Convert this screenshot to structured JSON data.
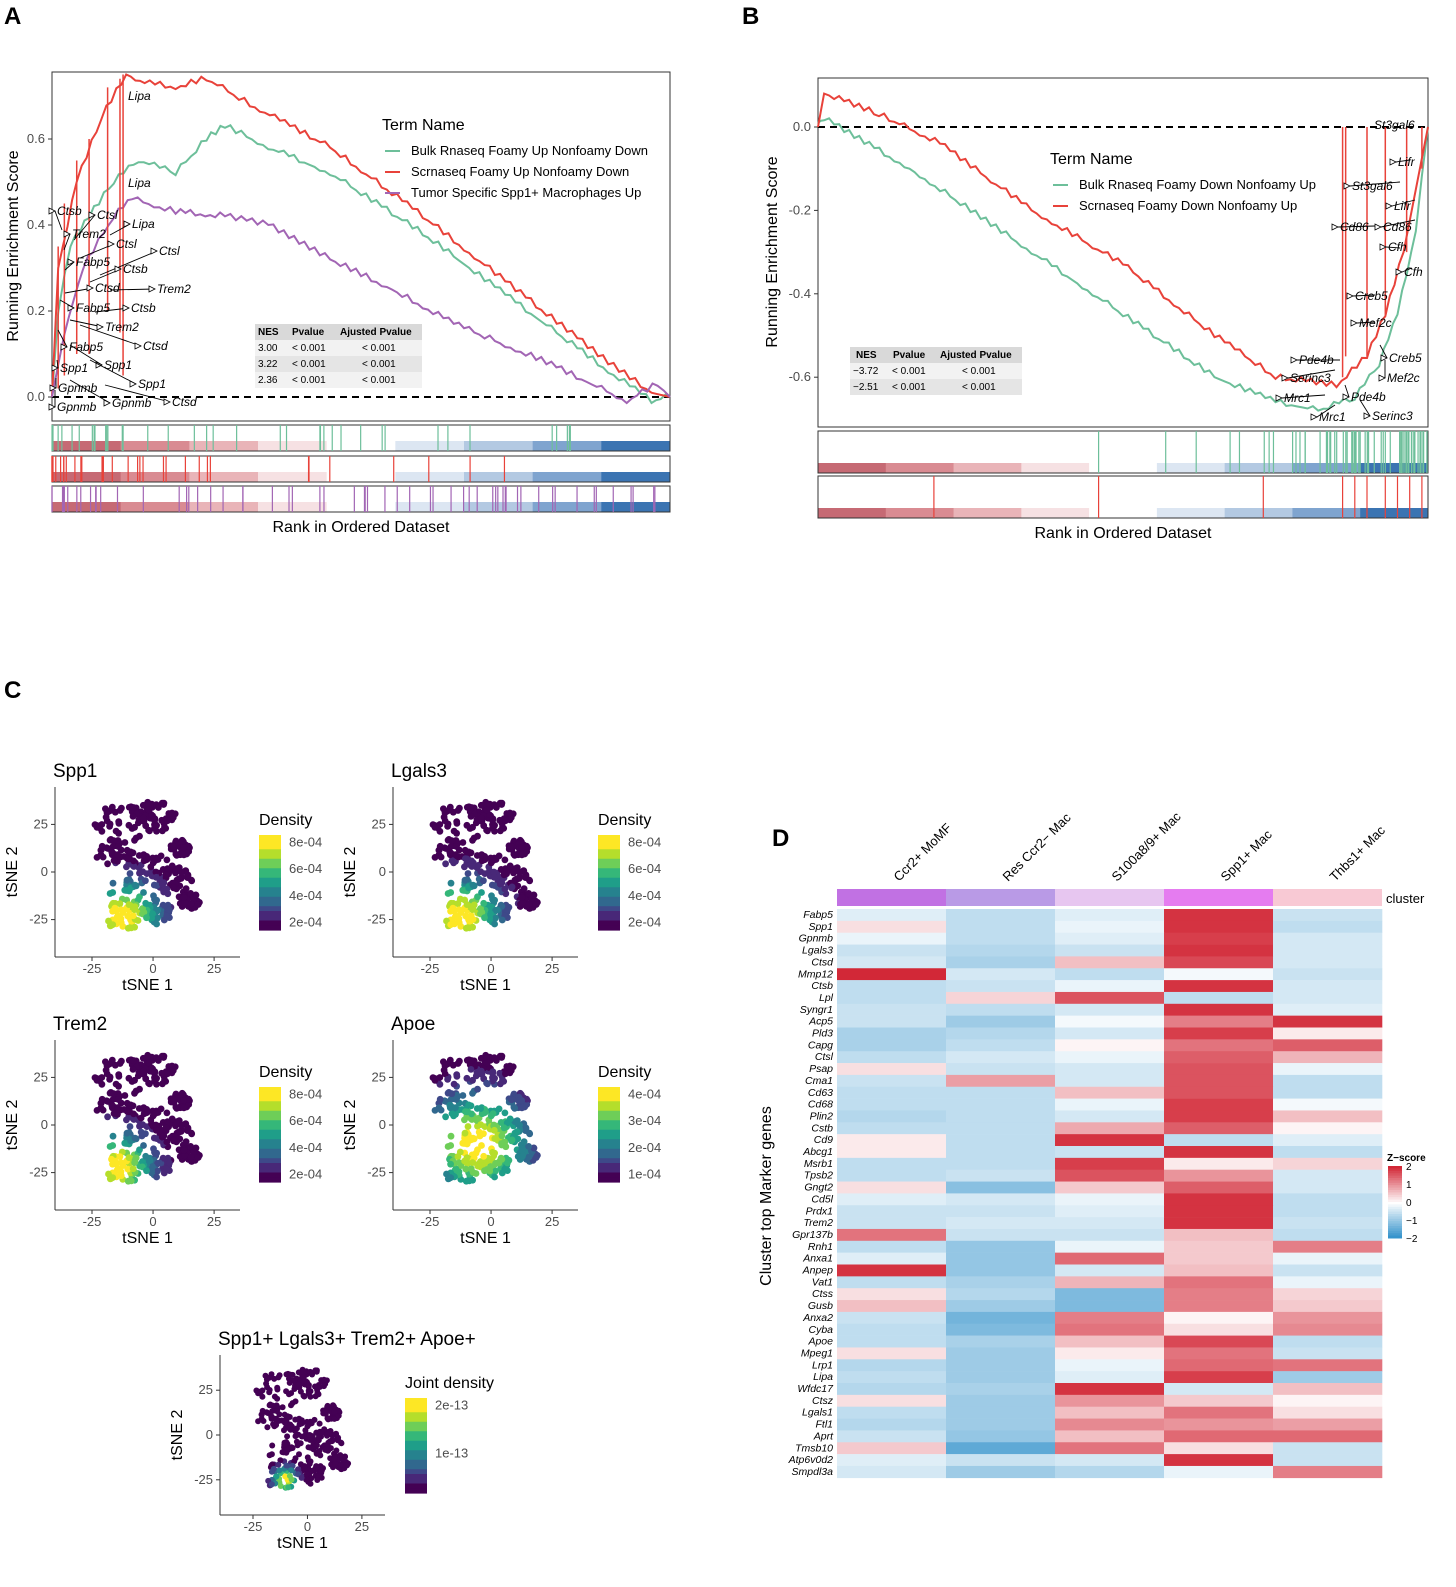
{
  "panels": {
    "A": "A",
    "B": "B",
    "C": "C",
    "D": "D"
  },
  "chart_data": [
    {
      "id": "A",
      "type": "line",
      "ylabel": "Running Enrichment Score",
      "xlabel": "Rank in Ordered Dataset",
      "yticks": [
        "0.0",
        "0.2",
        "0.4",
        "0.6"
      ],
      "ylim": [
        -0.05,
        0.78
      ],
      "legend_title": "Term Name",
      "colors": [
        "#6dbf9a",
        "#e8423a",
        "#a265b4"
      ],
      "series": [
        {
          "name": "Bulk Rnaseq Foamy Up Nonfoamy Down",
          "color": "#6dbf9a",
          "points": [
            [
              0,
              0
            ],
            [
              0.01,
              0.2
            ],
            [
              0.03,
              0.35
            ],
            [
              0.06,
              0.42
            ],
            [
              0.1,
              0.5
            ],
            [
              0.14,
              0.55
            ],
            [
              0.2,
              0.52
            ],
            [
              0.25,
              0.6
            ],
            [
              0.28,
              0.63
            ],
            [
              0.35,
              0.58
            ],
            [
              0.45,
              0.52
            ],
            [
              0.6,
              0.38
            ],
            [
              0.75,
              0.22
            ],
            [
              0.9,
              0.06
            ],
            [
              0.97,
              -0.01
            ],
            [
              1,
              0
            ]
          ]
        },
        {
          "name": "Scrnaseq Foamy Up Nonfoamy Down",
          "color": "#e8423a",
          "points": [
            [
              0,
              0
            ],
            [
              0.01,
              0.3
            ],
            [
              0.04,
              0.5
            ],
            [
              0.08,
              0.65
            ],
            [
              0.12,
              0.75
            ],
            [
              0.15,
              0.73
            ],
            [
              0.2,
              0.72
            ],
            [
              0.25,
              0.74
            ],
            [
              0.32,
              0.68
            ],
            [
              0.45,
              0.58
            ],
            [
              0.6,
              0.42
            ],
            [
              0.75,
              0.25
            ],
            [
              0.9,
              0.08
            ],
            [
              0.97,
              0.01
            ],
            [
              1,
              0
            ]
          ]
        },
        {
          "name": "Tumor Specific Spp1+ Macrophages Up",
          "color": "#a265b4",
          "points": [
            [
              0,
              0
            ],
            [
              0.02,
              0.15
            ],
            [
              0.05,
              0.3
            ],
            [
              0.1,
              0.42
            ],
            [
              0.13,
              0.46
            ],
            [
              0.2,
              0.43
            ],
            [
              0.28,
              0.42
            ],
            [
              0.35,
              0.4
            ],
            [
              0.45,
              0.32
            ],
            [
              0.55,
              0.25
            ],
            [
              0.65,
              0.17
            ],
            [
              0.8,
              0.08
            ],
            [
              0.93,
              -0.01
            ],
            [
              0.98,
              0.03
            ],
            [
              1,
              0
            ]
          ]
        }
      ],
      "table": {
        "headers": [
          "NES",
          "Pvalue",
          "Ajusted Pvalue"
        ],
        "rows": [
          [
            "3.00",
            "< 0.001",
            "< 0.001"
          ],
          [
            "3.22",
            "< 0.001",
            "< 0.001"
          ],
          [
            "2.36",
            "< 0.001",
            "< 0.001"
          ]
        ]
      },
      "gene_labels": [
        "Lipa",
        "Lipa",
        "Ctsb",
        "Ctsl",
        "Lipa",
        "Trem2",
        "Ctsl",
        "Fabp5",
        "Ctsl",
        "Ctsb",
        "Trem2",
        "Ctsd",
        "Fabp5",
        "Ctsb",
        "Trem2",
        "Ctsd",
        "Fabp5",
        "Spp1",
        "Spp1",
        "Spp1",
        "Gpnmb",
        "Gpnmb",
        "Gpnmb",
        "Ctsd"
      ]
    },
    {
      "id": "B",
      "type": "line",
      "ylabel": "Running Enrichment Score",
      "xlabel": "Rank in Ordered Dataset",
      "yticks": [
        "0.0",
        "-0.2",
        "-0.4",
        "-0.6"
      ],
      "ylim": [
        -0.7,
        0.1
      ],
      "legend_title": "Term Name",
      "colors": [
        "#6dbf9a",
        "#e8423a"
      ],
      "series": [
        {
          "name": "Bulk Rnaseq Foamy Down Nonfoamy Up",
          "color": "#6dbf9a",
          "points": [
            [
              0,
              0.01
            ],
            [
              0.01,
              0.02
            ],
            [
              0.15,
              -0.1
            ],
            [
              0.3,
              -0.25
            ],
            [
              0.5,
              -0.45
            ],
            [
              0.65,
              -0.6
            ],
            [
              0.75,
              -0.66
            ],
            [
              0.82,
              -0.68
            ],
            [
              0.88,
              -0.65
            ],
            [
              0.92,
              -0.57
            ],
            [
              0.95,
              -0.45
            ],
            [
              0.98,
              -0.25
            ],
            [
              1,
              0
            ]
          ]
        },
        {
          "name": "Scrnaseq Foamy Down Nonfoamy Up",
          "color": "#e8423a",
          "points": [
            [
              0,
              0
            ],
            [
              0.01,
              0.08
            ],
            [
              0.1,
              0.03
            ],
            [
              0.2,
              -0.04
            ],
            [
              0.35,
              -0.2
            ],
            [
              0.5,
              -0.33
            ],
            [
              0.65,
              -0.5
            ],
            [
              0.75,
              -0.6
            ],
            [
              0.85,
              -0.62
            ],
            [
              0.9,
              -0.55
            ],
            [
              0.93,
              -0.45
            ],
            [
              0.96,
              -0.3
            ],
            [
              0.98,
              -0.15
            ],
            [
              1,
              0
            ]
          ]
        }
      ],
      "table": {
        "headers": [
          "NES",
          "Pvalue",
          "Ajusted Pvalue"
        ],
        "rows": [
          [
            "−3.72",
            "< 0.001",
            "< 0.001"
          ],
          [
            "−2.51",
            "< 0.001",
            "< 0.001"
          ]
        ]
      },
      "gene_labels": [
        "St3gal6",
        "Lifr",
        "St3gal6",
        "Lifr",
        "Cd86",
        "Cd86",
        "Cfh",
        "Cfh",
        "Creb5",
        "Mef2c",
        "Pde4b",
        "Creb5",
        "Serinc3",
        "Mef2c",
        "Mrc1",
        "Pde4b",
        "Mrc1",
        "Serinc3"
      ]
    },
    {
      "id": "C",
      "type": "scatter",
      "xlabel": "tSNE 1",
      "ylabel": "tSNE 2",
      "xticks": [
        "-25",
        "0",
        "25"
      ],
      "yticks": [
        "25",
        "0",
        "-25"
      ],
      "plots": [
        {
          "title": "Spp1",
          "legend_title": "Density",
          "legend_ticks": [
            "8e-04",
            "6e-04",
            "4e-04",
            "2e-04"
          ]
        },
        {
          "title": "Lgals3",
          "legend_title": "Density",
          "legend_ticks": [
            "8e-04",
            "6e-04",
            "4e-04",
            "2e-04"
          ]
        },
        {
          "title": "Trem2",
          "legend_title": "Density",
          "legend_ticks": [
            "8e-04",
            "6e-04",
            "4e-04",
            "2e-04"
          ]
        },
        {
          "title": "Apoe",
          "legend_title": "Density",
          "legend_ticks": [
            "4e-04",
            "3e-04",
            "2e-04",
            "1e-04"
          ]
        },
        {
          "title": "Spp1+ Lgals3+ Trem2+ Apoe+",
          "legend_title": "Joint density",
          "legend_ticks": [
            "2e-13",
            "1e-13"
          ]
        }
      ]
    },
    {
      "id": "D",
      "type": "heatmap",
      "ylabel": "Cluster top Marker genes",
      "annotation_label": "cluster",
      "columns": [
        "Ccr2+ MoMF",
        "Res Ccr2− Mac",
        "S100a8/9+ Mac",
        "Spp1+ Mac",
        "Thbs1+ Mac"
      ],
      "column_colors": [
        "#c171e3",
        "#b99ae6",
        "#e7c6f0",
        "#e57cf0",
        "#f8c9d4"
      ],
      "legend_title": "Z−score",
      "legend_ticks": [
        "2",
        "1",
        "0",
        "−1",
        "−2"
      ],
      "genes": [
        "Fabp5",
        "Spp1",
        "Gpnmb",
        "Lgals3",
        "Ctsd",
        "Mmp12",
        "Ctsb",
        "Lpl",
        "Syngr1",
        "Acp5",
        "Pld3",
        "Capg",
        "Ctsl",
        "Psap",
        "Cma1",
        "Cd63",
        "Cd68",
        "Plin2",
        "Cstb",
        "Cd9",
        "Abcg1",
        "Msrb1",
        "Tpsb2",
        "Gngt2",
        "Cd5l",
        "Prdx1",
        "Trem2",
        "Gpr137b",
        "Rnh1",
        "Anxa1",
        "Anpep",
        "Vat1",
        "Ctss",
        "Gusb",
        "Anxa2",
        "Cyba",
        "Apoe",
        "Mpeg1",
        "Lrp1",
        "Lipa",
        "Wfdc17",
        "Ctsz",
        "Lgals1",
        "Ftl1",
        "Aprt",
        "Tmsb10",
        "Atp6v0d2",
        "Smpdl3a"
      ],
      "values": [
        [
          -0.3,
          -0.6,
          -0.3,
          1.9,
          -0.5
        ],
        [
          0.3,
          -0.6,
          -0.2,
          1.9,
          -0.6
        ],
        [
          -0.2,
          -0.6,
          -0.3,
          1.8,
          -0.4
        ],
        [
          -0.5,
          -0.7,
          -0.5,
          1.9,
          -0.4
        ],
        [
          -0.4,
          -0.8,
          0.6,
          1.7,
          -0.4
        ],
        [
          2.0,
          -0.4,
          -0.6,
          -0.1,
          -0.5
        ],
        [
          -0.6,
          -0.5,
          -0.2,
          1.9,
          -0.4
        ],
        [
          -0.6,
          0.4,
          1.6,
          -0.6,
          -0.4
        ],
        [
          -0.5,
          -0.6,
          -0.4,
          1.9,
          -0.3
        ],
        [
          -0.5,
          -0.9,
          -0.1,
          1.2,
          1.9
        ],
        [
          -0.8,
          -0.7,
          -0.4,
          1.8,
          0.2
        ],
        [
          -0.8,
          -0.6,
          0.1,
          1.3,
          1.5
        ],
        [
          -0.6,
          -0.4,
          -0.2,
          1.5,
          0.7
        ],
        [
          0.3,
          -0.5,
          -0.4,
          1.6,
          -0.2
        ],
        [
          -0.5,
          0.9,
          -0.4,
          1.6,
          -0.6
        ],
        [
          -0.6,
          -0.6,
          0.6,
          1.6,
          -0.6
        ],
        [
          -0.6,
          -0.6,
          -0.2,
          1.8,
          -0.1
        ],
        [
          -0.7,
          -0.6,
          -0.4,
          1.8,
          0.6
        ],
        [
          -0.6,
          -0.6,
          0.8,
          1.5,
          0.1
        ],
        [
          0.2,
          -0.6,
          1.9,
          -0.6,
          -0.3
        ],
        [
          0.2,
          -0.6,
          -0.5,
          1.9,
          -0.6
        ],
        [
          -0.6,
          -0.6,
          1.8,
          0.2,
          0.4
        ],
        [
          -0.6,
          -0.5,
          1.6,
          1.0,
          -0.4
        ],
        [
          0.3,
          -1.1,
          0.5,
          1.5,
          -0.4
        ],
        [
          -0.3,
          -0.4,
          -0.2,
          1.9,
          -0.6
        ],
        [
          -0.5,
          -0.5,
          -0.3,
          1.9,
          -0.6
        ],
        [
          -0.5,
          -0.4,
          -0.4,
          1.9,
          -0.5
        ],
        [
          1.3,
          -0.5,
          -0.5,
          0.6,
          -0.6
        ],
        [
          -0.6,
          -1.0,
          -0.2,
          0.5,
          1.2
        ],
        [
          -0.3,
          -1.0,
          1.4,
          0.5,
          -0.2
        ],
        [
          1.9,
          -1.0,
          -0.4,
          0.6,
          -0.5
        ],
        [
          -0.6,
          -0.8,
          0.7,
          1.3,
          -0.2
        ],
        [
          0.3,
          -0.7,
          -1.2,
          1.2,
          0.4
        ],
        [
          0.6,
          -0.9,
          -1.2,
          1.2,
          0.5
        ],
        [
          -0.5,
          -1.3,
          1.2,
          0.1,
          1.0
        ],
        [
          -0.6,
          -1.2,
          1.3,
          0.3,
          1.1
        ],
        [
          -0.6,
          -0.8,
          0.6,
          1.7,
          -0.6
        ],
        [
          0.3,
          -0.9,
          0.2,
          1.3,
          -0.5
        ],
        [
          -0.7,
          -0.9,
          -0.2,
          1.4,
          1.3
        ],
        [
          -0.6,
          -0.9,
          -0.3,
          1.8,
          -0.9
        ],
        [
          -0.7,
          -0.8,
          1.9,
          -0.4,
          0.6
        ],
        [
          0.3,
          -0.9,
          1.0,
          0.5,
          0.1
        ],
        [
          -0.6,
          -0.9,
          0.6,
          1.3,
          0.3
        ],
        [
          -0.7,
          -0.9,
          1.1,
          1.0,
          0.9
        ],
        [
          -0.5,
          -1.0,
          0.6,
          1.4,
          1.4
        ],
        [
          0.5,
          -1.5,
          1.3,
          0.3,
          -0.5
        ],
        [
          -0.3,
          -0.5,
          -0.4,
          1.9,
          -0.5
        ],
        [
          -0.4,
          -0.9,
          -0.7,
          -0.2,
          1.2
        ]
      ]
    }
  ]
}
